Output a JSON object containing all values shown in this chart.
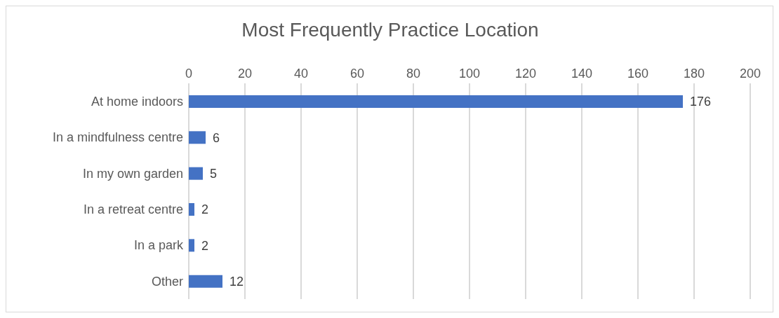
{
  "chart_data": {
    "type": "bar",
    "orientation": "horizontal",
    "title": "Most Frequently Practice Location",
    "categories": [
      "At home indoors",
      "In a mindfulness centre",
      "In my own garden",
      "In a retreat centre",
      "In a park",
      "Other"
    ],
    "values": [
      176,
      6,
      5,
      2,
      2,
      12
    ],
    "color": "#4472c4",
    "xlim": [
      0,
      200
    ],
    "xticks": [
      0,
      20,
      40,
      60,
      80,
      100,
      120,
      140,
      160,
      180,
      200
    ],
    "grid": "x",
    "data_labels": true,
    "legend": false
  }
}
